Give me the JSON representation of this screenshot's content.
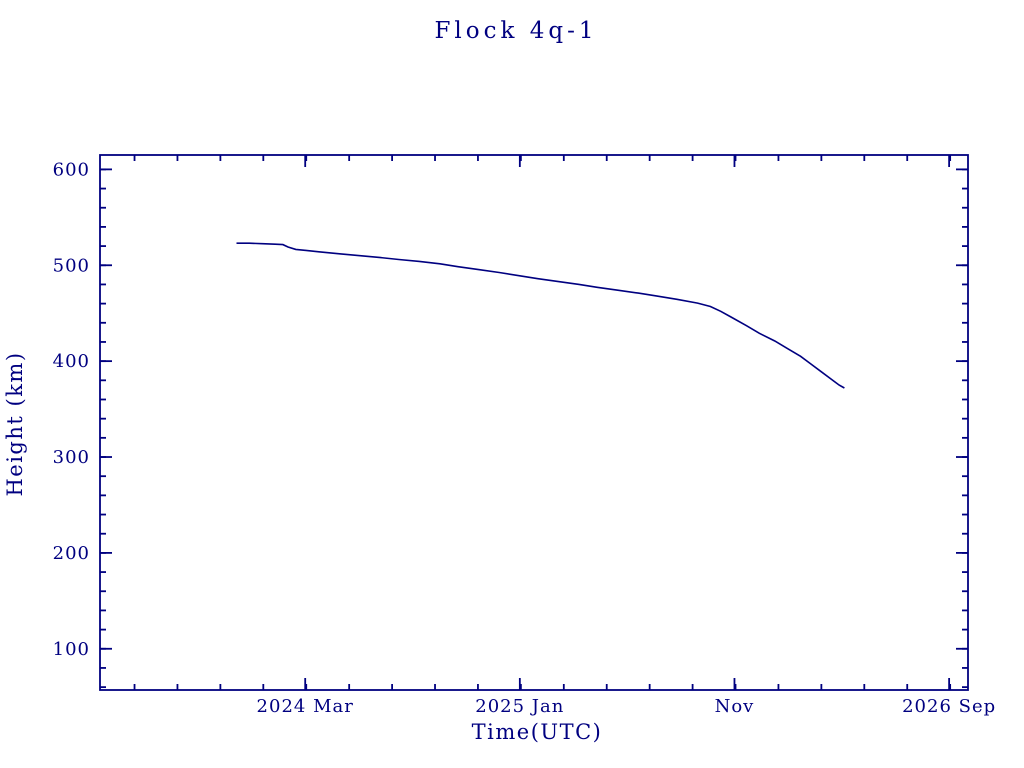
{
  "colors": {
    "accent": "#000080",
    "background": "#ffffff"
  },
  "chart_data": {
    "type": "line",
    "title": "Flock 4q-1",
    "xlabel": "Time(UTC)",
    "ylabel": "Height (km)",
    "xlim": [
      2023.37,
      2026.74
    ],
    "ylim": [
      57,
      615
    ],
    "grid": false,
    "legend": null,
    "x_ticks": [
      {
        "value": 2024.1667,
        "label": "2024 Mar"
      },
      {
        "value": 2025.0,
        "label": "2025 Jan"
      },
      {
        "value": 2025.8333,
        "label": "Nov"
      },
      {
        "value": 2026.6667,
        "label": "2026 Sep"
      }
    ],
    "x_minor_interval": 0.166667,
    "y_ticks": [
      100,
      200,
      300,
      400,
      500,
      600
    ],
    "y_minor_interval": 20,
    "series": [
      {
        "name": "Flock 4q-1 height",
        "color": "#000080",
        "points": [
          [
            2023.9,
            523
          ],
          [
            2023.95,
            523
          ],
          [
            2024.0,
            522.5
          ],
          [
            2024.05,
            522
          ],
          [
            2024.08,
            521.5
          ],
          [
            2024.1,
            519
          ],
          [
            2024.13,
            516.5
          ],
          [
            2024.17,
            515.5
          ],
          [
            2024.22,
            514
          ],
          [
            2024.3,
            512
          ],
          [
            2024.38,
            510
          ],
          [
            2024.46,
            508
          ],
          [
            2024.53,
            506
          ],
          [
            2024.61,
            504
          ],
          [
            2024.69,
            501.5
          ],
          [
            2024.76,
            498.5
          ],
          [
            2024.84,
            495.5
          ],
          [
            2024.92,
            492.5
          ],
          [
            2025.0,
            489
          ],
          [
            2025.07,
            486
          ],
          [
            2025.15,
            483
          ],
          [
            2025.23,
            480
          ],
          [
            2025.3,
            477
          ],
          [
            2025.38,
            474
          ],
          [
            2025.46,
            471
          ],
          [
            2025.53,
            468
          ],
          [
            2025.61,
            464.5
          ],
          [
            2025.69,
            460.5
          ],
          [
            2025.74,
            457
          ],
          [
            2025.78,
            452
          ],
          [
            2025.82,
            446
          ],
          [
            2025.88,
            437
          ],
          [
            2025.93,
            429
          ],
          [
            2025.99,
            421
          ],
          [
            2026.04,
            413
          ],
          [
            2026.09,
            405
          ],
          [
            2026.13,
            397
          ],
          [
            2026.17,
            389
          ],
          [
            2026.21,
            381
          ],
          [
            2026.24,
            375
          ],
          [
            2026.26,
            372
          ]
        ]
      }
    ]
  }
}
